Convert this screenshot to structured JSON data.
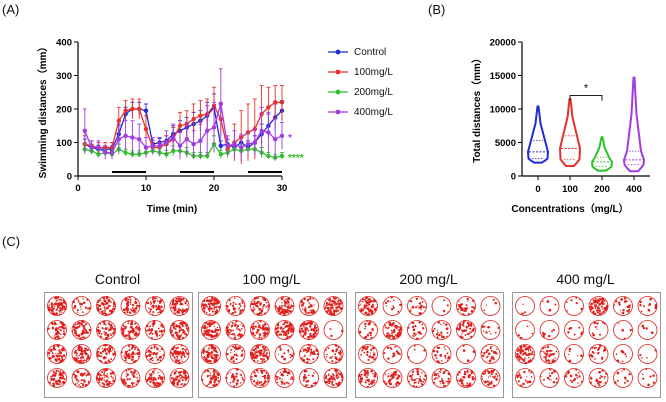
{
  "panels": {
    "a": "(A)",
    "b": "(B)",
    "c": "(C)"
  },
  "colors": {
    "control": "#1f2bd6",
    "c100": "#e8312c",
    "c200": "#2fc22a",
    "c400": "#a23be0",
    "plate_dot": "#e0201c"
  },
  "chart_data": [
    {
      "type": "line",
      "xlabel": "Time (min)",
      "ylabel": "Swimming distances（mm）",
      "xlim": [
        0,
        30
      ],
      "ylim": [
        0,
        400
      ],
      "xticks": [
        "0",
        "10",
        "20",
        "30"
      ],
      "yticks": [
        "0",
        "100",
        "200",
        "300",
        "400"
      ],
      "x": [
        1,
        2,
        3,
        4,
        5,
        6,
        7,
        8,
        9,
        10,
        11,
        12,
        13,
        14,
        15,
        16,
        17,
        18,
        19,
        20,
        21,
        22,
        23,
        24,
        25,
        26,
        27,
        28,
        29,
        30
      ],
      "light_off_bars": [
        [
          5,
          10
        ],
        [
          15,
          20
        ],
        [
          25,
          30
        ]
      ],
      "series": [
        {
          "name": "Control",
          "values": [
            95,
            85,
            80,
            80,
            80,
            125,
            185,
            200,
            200,
            195,
            95,
            100,
            105,
            125,
            135,
            145,
            155,
            165,
            180,
            205,
            90,
            95,
            85,
            100,
            85,
            100,
            125,
            150,
            175,
            195
          ],
          "err": [
            15,
            10,
            12,
            10,
            10,
            30,
            20,
            20,
            20,
            20,
            12,
            12,
            15,
            25,
            30,
            30,
            35,
            30,
            40,
            40,
            15,
            15,
            15,
            20,
            20,
            20,
            30,
            35,
            40,
            30
          ]
        },
        {
          "name": "100mg/L",
          "values": [
            95,
            90,
            85,
            85,
            85,
            165,
            195,
            200,
            200,
            140,
            85,
            85,
            95,
            110,
            150,
            155,
            170,
            180,
            185,
            210,
            170,
            80,
            100,
            115,
            130,
            140,
            185,
            205,
            220,
            220
          ],
          "err": [
            25,
            15,
            15,
            15,
            15,
            40,
            30,
            30,
            30,
            40,
            15,
            15,
            25,
            35,
            40,
            40,
            45,
            45,
            45,
            55,
            50,
            15,
            55,
            80,
            85,
            90,
            85,
            60,
            50,
            50
          ]
        },
        {
          "name": "200mg/L",
          "values": [
            80,
            75,
            65,
            70,
            65,
            80,
            70,
            65,
            65,
            70,
            75,
            70,
            65,
            75,
            75,
            70,
            60,
            60,
            60,
            95,
            65,
            70,
            80,
            75,
            80,
            80,
            70,
            60,
            55,
            60
          ],
          "err": [
            15,
            10,
            10,
            10,
            10,
            15,
            10,
            10,
            10,
            12,
            12,
            12,
            12,
            15,
            15,
            15,
            10,
            10,
            10,
            25,
            12,
            15,
            15,
            15,
            15,
            15,
            15,
            10,
            10,
            10
          ]
        },
        {
          "name": "400mg/L",
          "values": [
            135,
            85,
            85,
            70,
            70,
            110,
            120,
            115,
            110,
            85,
            90,
            90,
            100,
            115,
            90,
            110,
            95,
            105,
            135,
            145,
            215,
            90,
            95,
            85,
            95,
            100,
            135,
            130,
            110,
            120
          ],
          "err": [
            65,
            20,
            20,
            20,
            20,
            40,
            45,
            50,
            45,
            30,
            25,
            25,
            35,
            40,
            40,
            50,
            40,
            50,
            75,
            75,
            105,
            30,
            40,
            40,
            35,
            40,
            70,
            60,
            60,
            40
          ]
        }
      ],
      "annotations": [
        {
          "text": "*",
          "series": "400mg/L"
        },
        {
          "text": "****",
          "series": "200mg/L"
        }
      ],
      "legend": "right"
    },
    {
      "type": "violin",
      "xlabel": "Concentrations（mg/L）",
      "ylabel": "Total distances（mm）",
      "ylim": [
        0,
        20000
      ],
      "yticks": [
        "0",
        "5000",
        "10000",
        "15000",
        "20000"
      ],
      "categories": [
        "0",
        "100",
        "200",
        "400"
      ],
      "series": [
        {
          "name": "0",
          "min": 2000,
          "q1": 2600,
          "median": 3600,
          "q3": 5300,
          "max": 10400
        },
        {
          "name": "100",
          "min": 1500,
          "q1": 2500,
          "median": 4100,
          "q3": 6000,
          "max": 11500
        },
        {
          "name": "200",
          "min": 800,
          "q1": 1400,
          "median": 2100,
          "q3": 2800,
          "max": 5800
        },
        {
          "name": "400",
          "min": 700,
          "q1": 1700,
          "median": 2400,
          "q3": 3700,
          "max": 14700
        }
      ],
      "significance": {
        "text": "*",
        "between": [
          "100",
          "200"
        ]
      }
    }
  ],
  "plates": [
    {
      "title": "Control",
      "fill": [
        0.9,
        0.3,
        0.9,
        0.6,
        0.6,
        0.85,
        0.65,
        0.8,
        0.75,
        0.8,
        0.6,
        0.9,
        0.75,
        0.85,
        0.75,
        0.6,
        0.55,
        0.85,
        0.75,
        0.5,
        0.75,
        0.6,
        0.6,
        0.85
      ]
    },
    {
      "title": "100 mg/L",
      "fill": [
        0.95,
        0.45,
        0.65,
        0.85,
        0.5,
        0.95,
        0.9,
        0.6,
        0.7,
        0.95,
        0.95,
        0.05,
        0.95,
        0.4,
        0.85,
        0.2,
        0.55,
        0.4,
        0.7,
        0.35,
        0.55,
        0.5,
        0.3,
        0.75
      ]
    },
    {
      "title": "200 mg/L",
      "fill": [
        0.9,
        0.15,
        0.3,
        0.05,
        0.4,
        0.05,
        0.3,
        0.8,
        0.25,
        0.35,
        0.6,
        0.15,
        0.4,
        0.2,
        0.05,
        0.3,
        0.05,
        0.35,
        0.55,
        0.45,
        0.5,
        0.45,
        0.6,
        0.55
      ]
    },
    {
      "title": "400 mg/L",
      "fill": [
        0.05,
        0.05,
        0.1,
        0.98,
        0.3,
        0.15,
        0.05,
        0.1,
        0.1,
        0.15,
        0.05,
        0.05,
        0.85,
        0.4,
        0.1,
        0.3,
        0.1,
        0.05,
        0.3,
        0.2,
        0.3,
        0.3,
        0.15,
        0.1
      ]
    }
  ]
}
